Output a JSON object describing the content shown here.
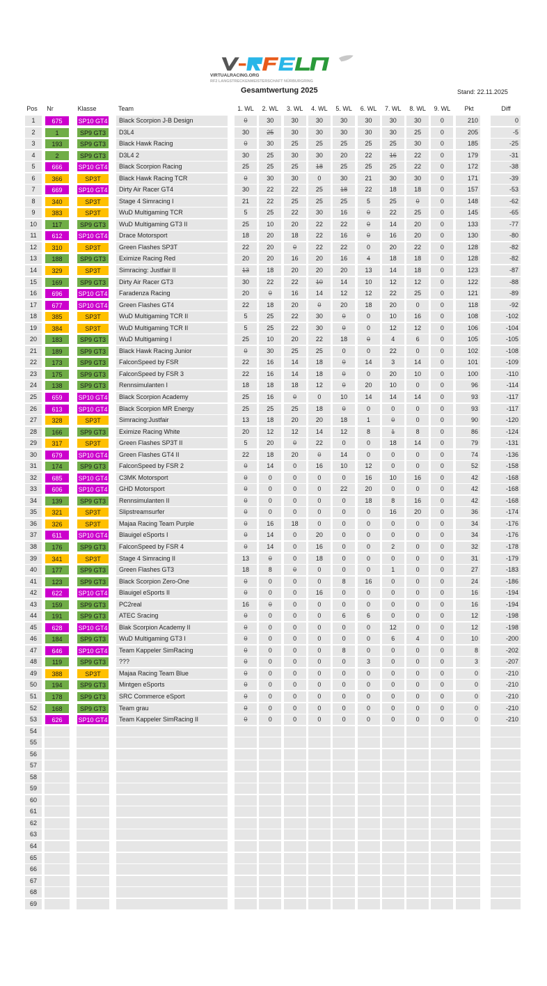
{
  "logo": {
    "wordmark": "V-RFELN",
    "site": "VIRTUALRACING.ORG",
    "subtitle": "RF2 LANGSTRECKENMEISTERSCHAFT NÜRBURGRING",
    "badge": "rF2"
  },
  "title": "Gesamtwertung 2025",
  "stand": "Stand: 22.11.2025",
  "headers": [
    "Pos",
    "Nr",
    "Klasse",
    "Team",
    "1. WL",
    "2. WL",
    "3. WL",
    "4. WL",
    "5. WL",
    "6. WL",
    "7. WL",
    "8. WL",
    "9. WL",
    "Pkt",
    "Diff"
  ],
  "class_colors": {
    "SP10 GT4": {
      "bg": "#cc00cc",
      "fg": "#ffffff"
    },
    "SP9 GT3": {
      "bg": "#70ad47",
      "fg": "#1a1a1a"
    },
    "SP3T": {
      "bg": "#ffc000",
      "fg": "#1a1a1a"
    }
  },
  "rows": [
    [
      "1",
      "675",
      "SP10 GT4",
      "Black Scorpion J-B Design",
      [
        "0",
        "30",
        "30",
        "30",
        "30",
        "30",
        "30",
        "30",
        "0"
      ],
      [
        0
      ],
      "210",
      "0"
    ],
    [
      "2",
      "1",
      "SP9 GT3",
      "D3L4",
      [
        "30",
        "25",
        "30",
        "30",
        "30",
        "30",
        "30",
        "25",
        "0"
      ],
      [
        1
      ],
      "205",
      "-5"
    ],
    [
      "3",
      "193",
      "SP9 GT3",
      "Black Hawk Racing",
      [
        "0",
        "30",
        "25",
        "25",
        "25",
        "25",
        "25",
        "30",
        "0"
      ],
      [
        0
      ],
      "185",
      "-25"
    ],
    [
      "4",
      "2",
      "SP9 GT3",
      "D3L4 2",
      [
        "30",
        "25",
        "30",
        "30",
        "20",
        "22",
        "16",
        "22",
        "0"
      ],
      [
        6
      ],
      "179",
      "-31"
    ],
    [
      "5",
      "666",
      "SP10 GT4",
      "Black Scorpion Racing",
      [
        "25",
        "25",
        "25",
        "18",
        "25",
        "25",
        "25",
        "22",
        "0"
      ],
      [
        3
      ],
      "172",
      "-38"
    ],
    [
      "6",
      "366",
      "SP3T",
      "Black Hawk Racing TCR",
      [
        "0",
        "30",
        "30",
        "0",
        "30",
        "21",
        "30",
        "30",
        "0"
      ],
      [
        0
      ],
      "171",
      "-39"
    ],
    [
      "7",
      "669",
      "SP10 GT4",
      "Dirty Air Racer GT4",
      [
        "30",
        "22",
        "22",
        "25",
        "18",
        "22",
        "18",
        "18",
        "0"
      ],
      [
        4
      ],
      "157",
      "-53"
    ],
    [
      "8",
      "340",
      "SP3T",
      "Stage 4 Simracing I",
      [
        "21",
        "22",
        "25",
        "25",
        "25",
        "5",
        "25",
        "0",
        "0"
      ],
      [
        7
      ],
      "148",
      "-62"
    ],
    [
      "9",
      "383",
      "SP3T",
      "WuD Multigaming TCR",
      [
        "5",
        "25",
        "22",
        "30",
        "16",
        "0",
        "22",
        "25",
        "0"
      ],
      [
        5
      ],
      "145",
      "-65"
    ],
    [
      "10",
      "117",
      "SP9 GT3",
      "WuD Multigaming GT3 II",
      [
        "25",
        "10",
        "20",
        "22",
        "22",
        "0",
        "14",
        "20",
        "0"
      ],
      [
        5
      ],
      "133",
      "-77"
    ],
    [
      "11",
      "612",
      "SP10 GT4",
      "Drace Motorsport",
      [
        "18",
        "20",
        "18",
        "22",
        "16",
        "0",
        "16",
        "20",
        "0"
      ],
      [
        5
      ],
      "130",
      "-80"
    ],
    [
      "12",
      "310",
      "SP3T",
      "Green Flashes SP3T",
      [
        "22",
        "20",
        "0",
        "22",
        "22",
        "0",
        "20",
        "22",
        "0"
      ],
      [
        2
      ],
      "128",
      "-82"
    ],
    [
      "13",
      "188",
      "SP9 GT3",
      "Eximize Racing Red",
      [
        "20",
        "20",
        "16",
        "20",
        "16",
        "4",
        "18",
        "18",
        "0"
      ],
      [
        5
      ],
      "128",
      "-82"
    ],
    [
      "14",
      "329",
      "SP3T",
      "Simracing: Justfair II",
      [
        "13",
        "18",
        "20",
        "20",
        "20",
        "13",
        "14",
        "18",
        "0"
      ],
      [
        0
      ],
      "123",
      "-87"
    ],
    [
      "15",
      "169",
      "SP9 GT3",
      "Dirty Air Racer GT3",
      [
        "30",
        "22",
        "22",
        "10",
        "14",
        "10",
        "12",
        "12",
        "0"
      ],
      [
        3
      ],
      "122",
      "-88"
    ],
    [
      "16",
      "696",
      "SP10 GT4",
      "Faradenza Racing",
      [
        "20",
        "0",
        "16",
        "14",
        "12",
        "12",
        "22",
        "25",
        "0"
      ],
      [
        1
      ],
      "121",
      "-89"
    ],
    [
      "17",
      "677",
      "SP10 GT4",
      "Green Flashes GT4",
      [
        "22",
        "18",
        "20",
        "0",
        "20",
        "18",
        "20",
        "0",
        "0"
      ],
      [
        3
      ],
      "118",
      "-92"
    ],
    [
      "18",
      "385",
      "SP3T",
      "WuD Multigaming TCR II",
      [
        "5",
        "25",
        "22",
        "30",
        "0",
        "0",
        "10",
        "16",
        "0"
      ],
      [
        4
      ],
      "108",
      "-102"
    ],
    [
      "19",
      "384",
      "SP3T",
      "WuD Multigaming TCR II",
      [
        "5",
        "25",
        "22",
        "30",
        "0",
        "0",
        "12",
        "12",
        "0"
      ],
      [
        4
      ],
      "106",
      "-104"
    ],
    [
      "20",
      "183",
      "SP9 GT3",
      "WuD Multigaming I",
      [
        "25",
        "10",
        "20",
        "22",
        "18",
        "0",
        "4",
        "6",
        "0"
      ],
      [
        5
      ],
      "105",
      "-105"
    ],
    [
      "21",
      "189",
      "SP9 GT3",
      "Black Hawk Racing Junior",
      [
        "0",
        "30",
        "25",
        "25",
        "0",
        "0",
        "22",
        "0",
        "0"
      ],
      [
        0
      ],
      "102",
      "-108"
    ],
    [
      "22",
      "173",
      "SP9 GT3",
      "FalconSpeed by FSR",
      [
        "22",
        "16",
        "14",
        "18",
        "0",
        "14",
        "3",
        "14",
        "0"
      ],
      [
        4
      ],
      "101",
      "-109"
    ],
    [
      "23",
      "175",
      "SP9 GT3",
      "FalconSpeed by FSR 3",
      [
        "22",
        "16",
        "14",
        "18",
        "0",
        "0",
        "20",
        "10",
        "0"
      ],
      [
        4
      ],
      "100",
      "-110"
    ],
    [
      "24",
      "138",
      "SP9 GT3",
      "Rennsimulanten I",
      [
        "18",
        "18",
        "18",
        "12",
        "0",
        "20",
        "10",
        "0",
        "0"
      ],
      [
        4
      ],
      "96",
      "-114"
    ],
    [
      "25",
      "659",
      "SP10 GT4",
      "Black Scorpion Academy",
      [
        "25",
        "16",
        "0",
        "0",
        "10",
        "14",
        "14",
        "14",
        "0"
      ],
      [
        2
      ],
      "93",
      "-117"
    ],
    [
      "26",
      "613",
      "SP10 GT4",
      "Black Scorpion MR Energy",
      [
        "25",
        "25",
        "25",
        "18",
        "0",
        "0",
        "0",
        "0",
        "0"
      ],
      [
        4
      ],
      "93",
      "-117"
    ],
    [
      "27",
      "328",
      "SP3T",
      "Simracing:Justfair",
      [
        "13",
        "18",
        "20",
        "20",
        "18",
        "1",
        "0",
        "0",
        "0"
      ],
      [
        6
      ],
      "90",
      "-120"
    ],
    [
      "28",
      "166",
      "SP9 GT3",
      "Eximize Racing White",
      [
        "20",
        "12",
        "12",
        "14",
        "12",
        "8",
        "1",
        "8",
        "0"
      ],
      [
        6
      ],
      "86",
      "-124"
    ],
    [
      "29",
      "317",
      "SP3T",
      "Green Flashes SP3T II",
      [
        "5",
        "20",
        "0",
        "22",
        "0",
        "0",
        "18",
        "14",
        "0"
      ],
      [
        2
      ],
      "79",
      "-131"
    ],
    [
      "30",
      "679",
      "SP10 GT4",
      "Green Flashes GT4 II",
      [
        "22",
        "18",
        "20",
        "0",
        "14",
        "0",
        "0",
        "0",
        "0"
      ],
      [
        3
      ],
      "74",
      "-136"
    ],
    [
      "31",
      "174",
      "SP9 GT3",
      "FalconSpeed by FSR 2",
      [
        "0",
        "14",
        "0",
        "16",
        "10",
        "12",
        "0",
        "0",
        "0"
      ],
      [
        0
      ],
      "52",
      "-158"
    ],
    [
      "32",
      "685",
      "SP10 GT4",
      "C3MK Motorsport",
      [
        "0",
        "0",
        "0",
        "0",
        "0",
        "16",
        "10",
        "16",
        "0"
      ],
      [
        0
      ],
      "42",
      "-168"
    ],
    [
      "33",
      "606",
      "SP10 GT4",
      "GHD Motorsport",
      [
        "0",
        "0",
        "0",
        "0",
        "22",
        "20",
        "0",
        "0",
        "0"
      ],
      [
        0
      ],
      "42",
      "-168"
    ],
    [
      "34",
      "139",
      "SP9 GT3",
      "Rennsimulanten II",
      [
        "0",
        "0",
        "0",
        "0",
        "0",
        "18",
        "8",
        "16",
        "0"
      ],
      [
        0
      ],
      "42",
      "-168"
    ],
    [
      "35",
      "321",
      "SP3T",
      "Slipstreamsurfer",
      [
        "0",
        "0",
        "0",
        "0",
        "0",
        "0",
        "16",
        "20",
        "0"
      ],
      [
        0
      ],
      "36",
      "-174"
    ],
    [
      "36",
      "326",
      "SP3T",
      "Majaa Racing Team Purple",
      [
        "0",
        "16",
        "18",
        "0",
        "0",
        "0",
        "0",
        "0",
        "0"
      ],
      [
        0
      ],
      "34",
      "-176"
    ],
    [
      "37",
      "611",
      "SP10 GT4",
      "Blauigel eSports I",
      [
        "0",
        "14",
        "0",
        "20",
        "0",
        "0",
        "0",
        "0",
        "0"
      ],
      [
        0
      ],
      "34",
      "-176"
    ],
    [
      "38",
      "176",
      "SP9 GT3",
      "FalconSpeed by FSR 4",
      [
        "0",
        "14",
        "0",
        "16",
        "0",
        "0",
        "2",
        "0",
        "0"
      ],
      [
        0
      ],
      "32",
      "-178"
    ],
    [
      "39",
      "341",
      "SP3T",
      "Stage 4 Simracing II",
      [
        "13",
        "0",
        "0",
        "18",
        "0",
        "0",
        "0",
        "0",
        "0"
      ],
      [
        1
      ],
      "31",
      "-179"
    ],
    [
      "40",
      "177",
      "SP9 GT3",
      "Green Flashes GT3",
      [
        "18",
        "8",
        "0",
        "0",
        "0",
        "0",
        "1",
        "0",
        "0"
      ],
      [
        2
      ],
      "27",
      "-183"
    ],
    [
      "41",
      "123",
      "SP9 GT3",
      "Black Scorpion Zero-One",
      [
        "0",
        "0",
        "0",
        "0",
        "8",
        "16",
        "0",
        "0",
        "0"
      ],
      [
        0
      ],
      "24",
      "-186"
    ],
    [
      "42",
      "622",
      "SP10 GT4",
      "Blauigel eSports II",
      [
        "0",
        "0",
        "0",
        "16",
        "0",
        "0",
        "0",
        "0",
        "0"
      ],
      [
        0
      ],
      "16",
      "-194"
    ],
    [
      "43",
      "159",
      "SP9 GT3",
      "PC2real",
      [
        "16",
        "0",
        "0",
        "0",
        "0",
        "0",
        "0",
        "0",
        "0"
      ],
      [
        1
      ],
      "16",
      "-194"
    ],
    [
      "44",
      "191",
      "SP9 GT3",
      "ATEC Sracing",
      [
        "0",
        "0",
        "0",
        "0",
        "6",
        "6",
        "0",
        "0",
        "0"
      ],
      [
        0
      ],
      "12",
      "-198"
    ],
    [
      "45",
      "628",
      "SP10 GT4",
      "Blak Scorpion Academy II",
      [
        "0",
        "0",
        "0",
        "0",
        "0",
        "0",
        "12",
        "0",
        "0"
      ],
      [
        0
      ],
      "12",
      "-198"
    ],
    [
      "46",
      "184",
      "SP9 GT3",
      "WuD Multigaming GT3 I",
      [
        "0",
        "0",
        "0",
        "0",
        "0",
        "0",
        "6",
        "4",
        "0"
      ],
      [
        0
      ],
      "10",
      "-200"
    ],
    [
      "47",
      "646",
      "SP10 GT4",
      "Team Kappeler SimRacing",
      [
        "0",
        "0",
        "0",
        "0",
        "8",
        "0",
        "0",
        "0",
        "0"
      ],
      [
        0
      ],
      "8",
      "-202"
    ],
    [
      "48",
      "119",
      "SP9 GT3",
      "???",
      [
        "0",
        "0",
        "0",
        "0",
        "0",
        "3",
        "0",
        "0",
        "0"
      ],
      [
        0
      ],
      "3",
      "-207"
    ],
    [
      "49",
      "388",
      "SP3T",
      "Majaa Racing Team Blue",
      [
        "0",
        "0",
        "0",
        "0",
        "0",
        "0",
        "0",
        "0",
        "0"
      ],
      [
        0
      ],
      "0",
      "-210"
    ],
    [
      "50",
      "194",
      "SP9 GT3",
      "Mintgen eSports",
      [
        "0",
        "0",
        "0",
        "0",
        "0",
        "0",
        "0",
        "0",
        "0"
      ],
      [
        0
      ],
      "0",
      "-210"
    ],
    [
      "51",
      "178",
      "SP9 GT3",
      "SRC Commerce eSport",
      [
        "0",
        "0",
        "0",
        "0",
        "0",
        "0",
        "0",
        "0",
        "0"
      ],
      [
        0
      ],
      "0",
      "-210"
    ],
    [
      "52",
      "168",
      "SP9 GT3",
      "Team grau",
      [
        "0",
        "0",
        "0",
        "0",
        "0",
        "0",
        "0",
        "0",
        "0"
      ],
      [
        0
      ],
      "0",
      "-210"
    ],
    [
      "53",
      "626",
      "SP10 GT4",
      "Team Kappeler SimRacing II",
      [
        "0",
        "0",
        "0",
        "0",
        "0",
        "0",
        "0",
        "0",
        "0"
      ],
      [
        0
      ],
      "0",
      "-210"
    ]
  ],
  "empty_rows": [
    "54",
    "55",
    "56",
    "57",
    "58",
    "59",
    "60",
    "61",
    "62",
    "63",
    "64",
    "65",
    "66",
    "67",
    "68",
    "69"
  ]
}
